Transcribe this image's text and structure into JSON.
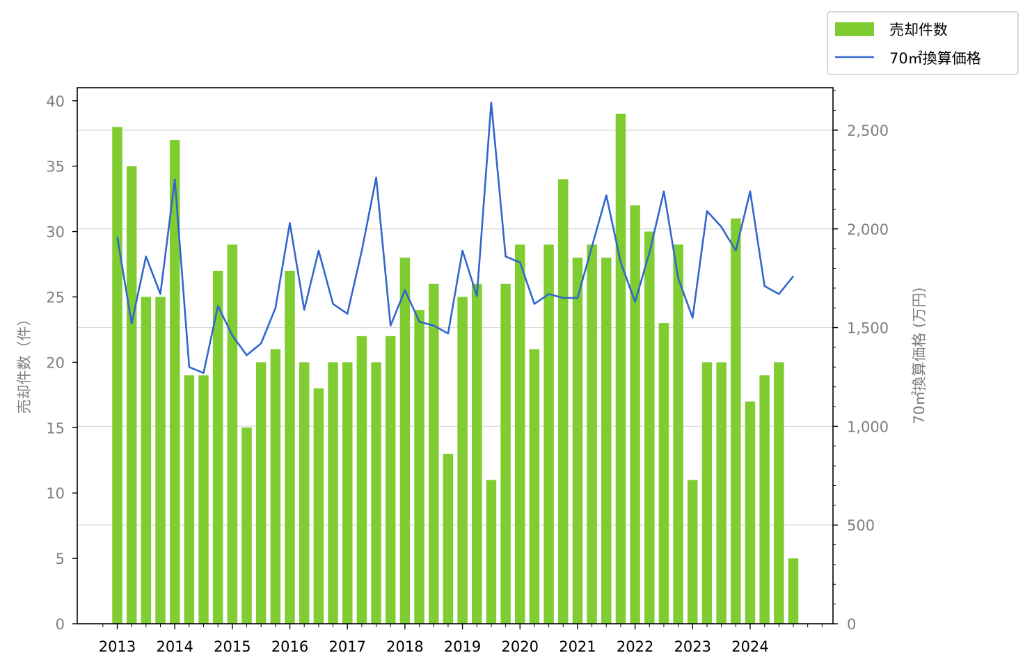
{
  "chart_data": {
    "type": "bar",
    "x_labels": [
      "2013",
      "2014",
      "2015",
      "2016",
      "2017",
      "2018",
      "2019",
      "2020",
      "2021",
      "2022",
      "2023",
      "2024"
    ],
    "series": [
      {
        "name": "売却件数",
        "type": "bar",
        "axis": "left",
        "color": "#7fcd31",
        "values": [
          38,
          35,
          25,
          25,
          37,
          19,
          19,
          27,
          29,
          15,
          20,
          21,
          27,
          20,
          18,
          20,
          20,
          22,
          20,
          22,
          28,
          24,
          26,
          13,
          25,
          26,
          11,
          26,
          29,
          21,
          29,
          34,
          28,
          29,
          28,
          39,
          32,
          30,
          23,
          29,
          11,
          20,
          20,
          31,
          17,
          19,
          20,
          5
        ]
      },
      {
        "name": "70㎡換算価格",
        "type": "line",
        "axis": "right",
        "color": "#3366cc",
        "values": [
          1960,
          1520,
          1860,
          1670,
          2250,
          1300,
          1270,
          1610,
          1460,
          1360,
          1420,
          1600,
          2030,
          1590,
          1890,
          1620,
          1570,
          1890,
          2260,
          1510,
          1690,
          1530,
          1510,
          1470,
          1890,
          1660,
          2640,
          1860,
          1830,
          1620,
          1670,
          1650,
          1650,
          1910,
          2170,
          1830,
          1630,
          1880,
          2190,
          1750,
          1550,
          2090,
          2010,
          1890,
          2190,
          1710,
          1670,
          1760
        ]
      }
    ],
    "y_left": {
      "label": "売却件数（件）",
      "range": [
        0,
        41
      ],
      "ticks": [
        "0",
        "5",
        "10",
        "15",
        "20",
        "25",
        "30",
        "35",
        "40"
      ]
    },
    "y_right": {
      "label": "70㎡換算価格 (万円)",
      "range": [
        0,
        2715
      ],
      "ticks": [
        "0",
        "500",
        "1,000",
        "1,500",
        "2,000",
        "2,500"
      ]
    },
    "grid": "horizontal",
    "legend_position": "top-right"
  }
}
